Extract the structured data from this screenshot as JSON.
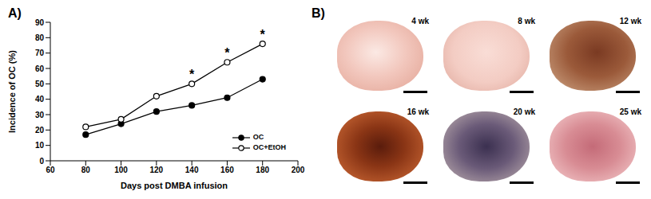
{
  "chart_data": {
    "type": "line",
    "title": "A)",
    "x_label": "Days post DMBA infusion",
    "y_label": "Incidence of OC (%)",
    "x": [
      80,
      100,
      120,
      140,
      160,
      180
    ],
    "series": [
      {
        "name": "OC",
        "color": "#000000",
        "marker": "filled",
        "values": [
          17,
          24,
          32,
          36,
          41,
          53
        ]
      },
      {
        "name": "OC+EtOH",
        "color": "#000000",
        "marker": "hollow",
        "values": [
          22,
          27,
          42,
          50,
          64,
          76
        ]
      }
    ],
    "xlim": [
      60,
      200
    ],
    "xticks": [
      60,
      80,
      100,
      120,
      140,
      160,
      180,
      200
    ],
    "ylim": [
      0,
      90
    ],
    "yticks": [
      0,
      10,
      20,
      30,
      40,
      50,
      60,
      70,
      80,
      90
    ],
    "grid": false,
    "legend": "lower right",
    "annotations": [
      {
        "x": 140,
        "y": 50,
        "text": "*"
      },
      {
        "x": 160,
        "y": 64,
        "text": "*"
      },
      {
        "x": 180,
        "y": 76,
        "text": "*"
      }
    ]
  },
  "photos": {
    "label": "B)",
    "items": [
      "4 wk",
      "8 wk",
      "12 wk",
      "16 wk",
      "20 wk",
      "25 wk"
    ]
  }
}
